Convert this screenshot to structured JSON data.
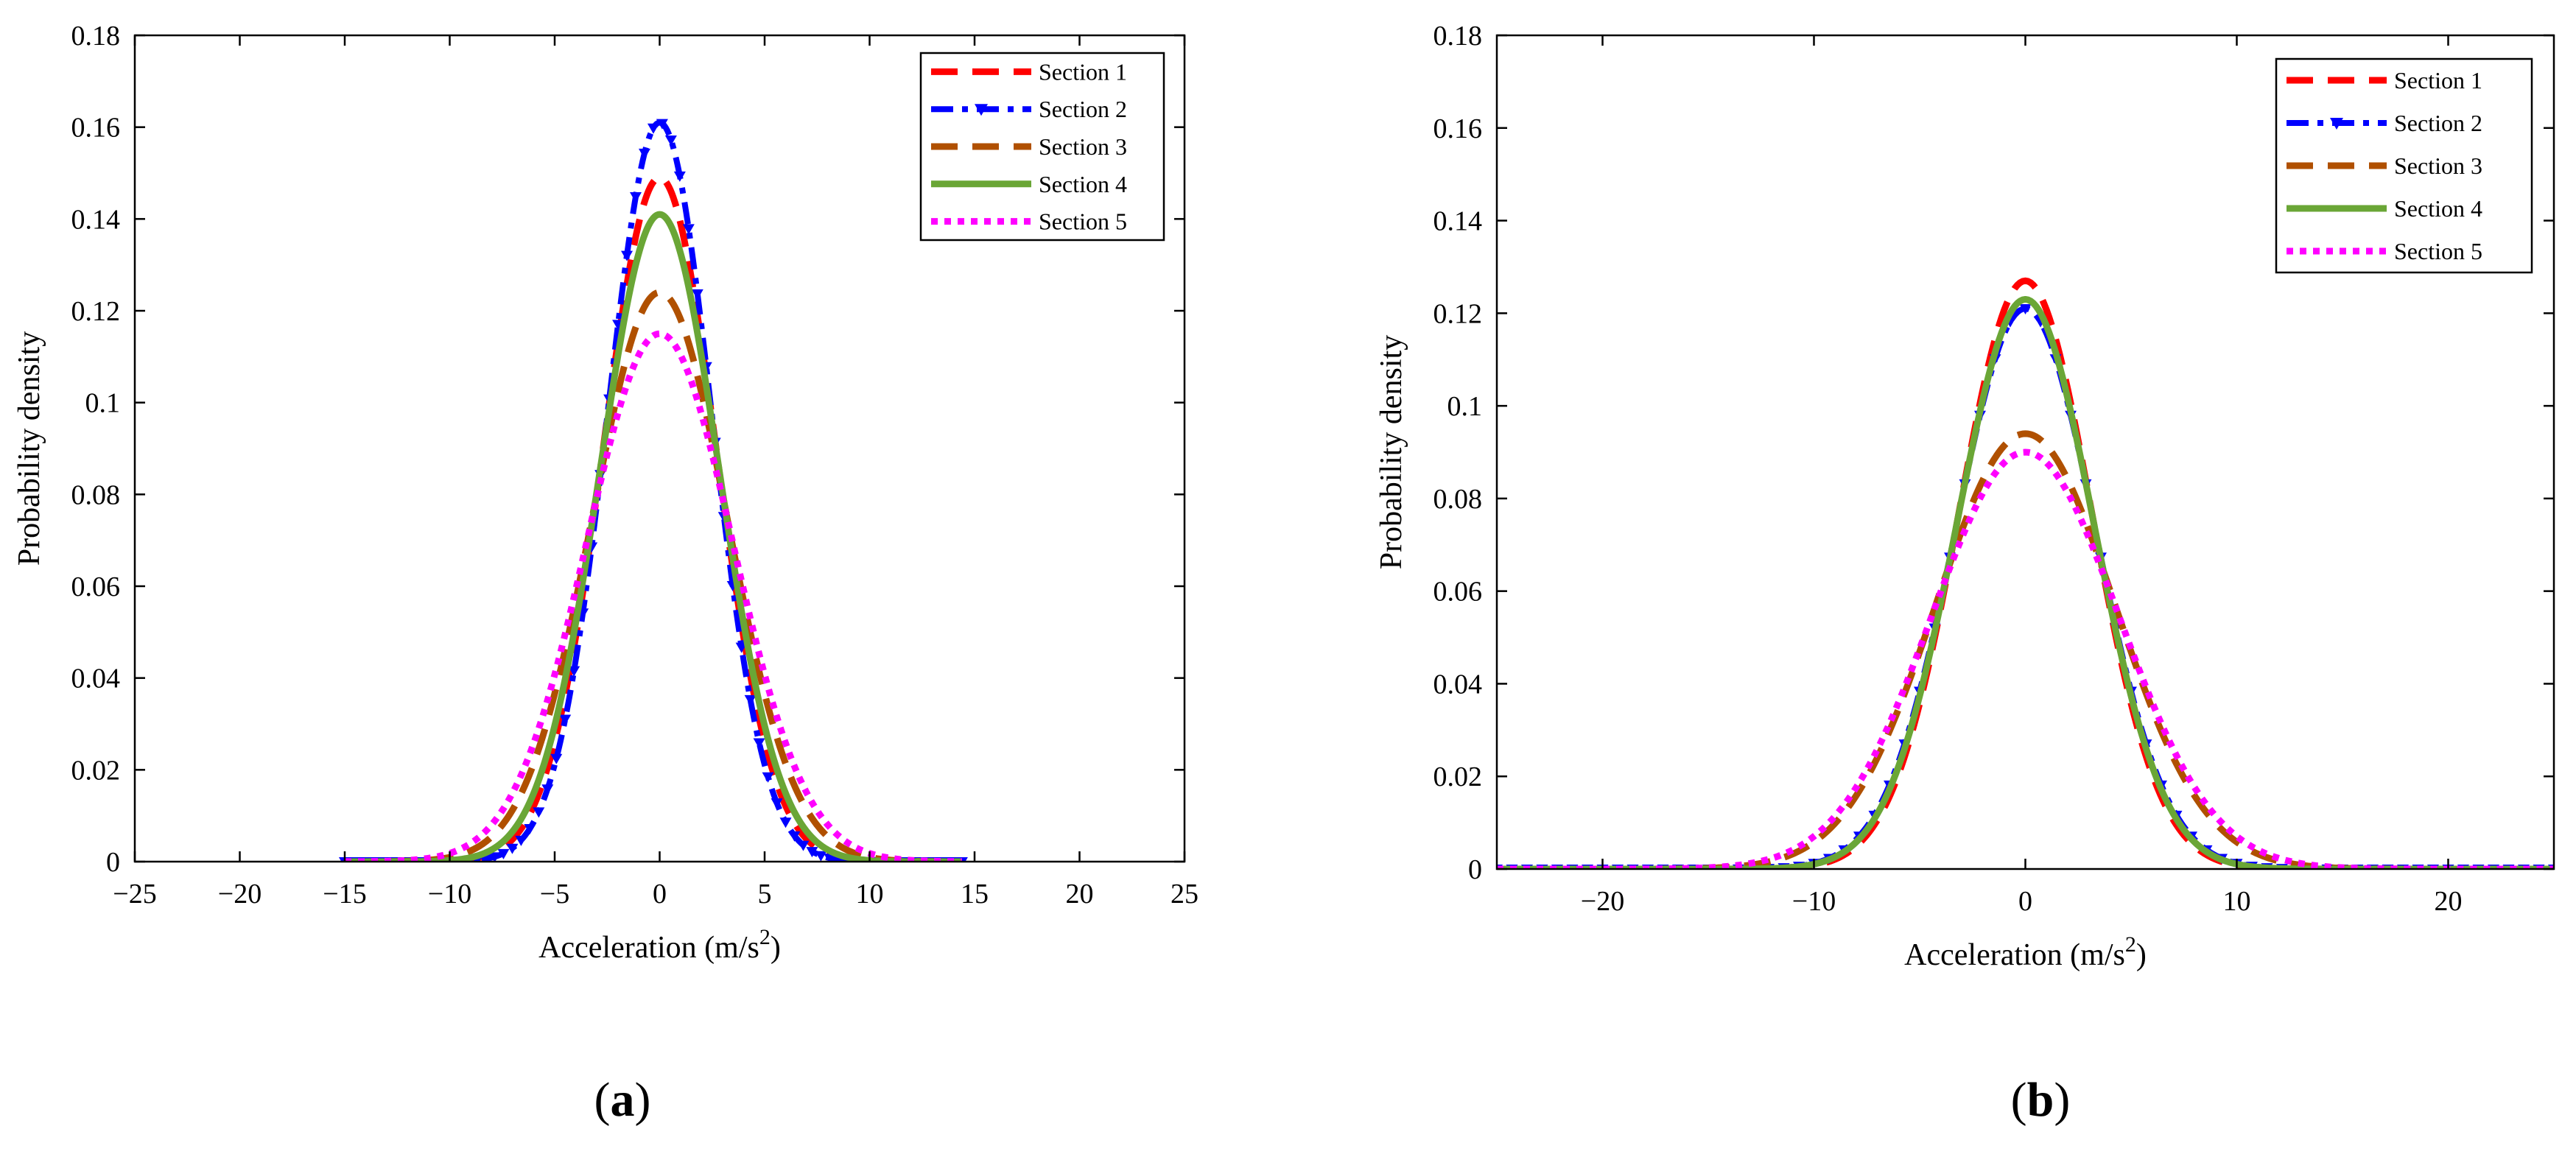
{
  "chart_data": [
    {
      "type": "line",
      "panel_label": "a",
      "xlabel_text": "Acceleration (m/s",
      "xlabel_sup": "2",
      "xlabel_close": ")",
      "ylabel": "Probability density",
      "xlim": [
        -25,
        25
      ],
      "ylim": [
        0,
        0.18
      ],
      "xticks": [
        -25,
        -20,
        -15,
        -10,
        -5,
        0,
        5,
        10,
        15,
        20,
        25
      ],
      "xtick_labels": [
        "−25",
        "−20",
        "−15",
        "−10",
        "−5",
        "0",
        "5",
        "10",
        "15",
        "20",
        "25"
      ],
      "yticks": [
        0,
        0.02,
        0.04,
        0.06,
        0.08,
        0.1,
        0.12,
        0.14,
        0.16,
        0.18
      ],
      "ytick_labels": [
        "0",
        "0.02",
        "0.04",
        "0.06",
        "0.08",
        "0.1",
        "0.12",
        "0.14",
        "0.16",
        "0.18"
      ],
      "x_range": [
        -15,
        14.4
      ],
      "legend_position": "top-right",
      "series": [
        {
          "name": "Section 1",
          "peak": 0.149,
          "sigma": 2.68,
          "color": "#ff0000",
          "style": "dash"
        },
        {
          "name": "Section 2",
          "peak": 0.161,
          "sigma": 2.48,
          "color": "#0000ff",
          "style": "dashdot-marker"
        },
        {
          "name": "Section 3",
          "peak": 0.124,
          "sigma": 3.2,
          "color": "#b05000",
          "style": "dash"
        },
        {
          "name": "Section 4",
          "peak": 0.141,
          "sigma": 2.83,
          "color": "#6aa636",
          "style": "solid"
        },
        {
          "name": "Section 5",
          "peak": 0.115,
          "sigma": 3.47,
          "color": "#ff00ff",
          "style": "dot"
        }
      ]
    },
    {
      "type": "line",
      "panel_label": "b",
      "xlabel_text": "Acceleration (m/s",
      "xlabel_sup": "2",
      "xlabel_close": ")",
      "ylabel": "Probability density",
      "xlim": [
        -25,
        25
      ],
      "ylim": [
        0,
        0.18
      ],
      "xticks": [
        -20,
        -10,
        0,
        10,
        20
      ],
      "xtick_labels": [
        "−20",
        "−10",
        "0",
        "10",
        "20"
      ],
      "yticks": [
        0,
        0.02,
        0.04,
        0.06,
        0.08,
        0.1,
        0.12,
        0.14,
        0.16,
        0.18
      ],
      "ytick_labels": [
        "0",
        "0.02",
        "0.04",
        "0.06",
        "0.08",
        "0.1",
        "0.12",
        "0.14",
        "0.16",
        "0.18"
      ],
      "x_range": [
        -25,
        25
      ],
      "legend_position": "top-right",
      "series": [
        {
          "name": "Section 1",
          "peak": 0.127,
          "sigma": 3.14,
          "color": "#ff0000",
          "style": "dash"
        },
        {
          "name": "Section 2",
          "peak": 0.121,
          "sigma": 3.3,
          "color": "#0000ff",
          "style": "dashdot-marker"
        },
        {
          "name": "Section 3",
          "peak": 0.094,
          "sigma": 4.24,
          "color": "#b05000",
          "style": "dash"
        },
        {
          "name": "Section 4",
          "peak": 0.123,
          "sigma": 3.24,
          "color": "#6aa636",
          "style": "solid"
        },
        {
          "name": "Section 5",
          "peak": 0.09,
          "sigma": 4.43,
          "color": "#ff00ff",
          "style": "dot"
        }
      ]
    }
  ]
}
